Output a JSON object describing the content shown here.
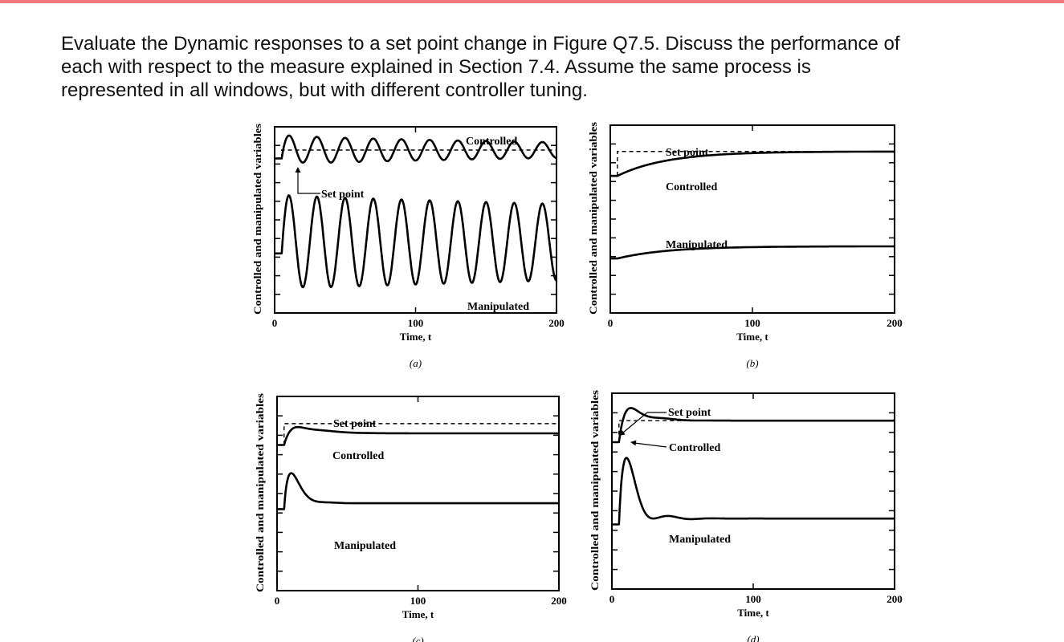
{
  "question": {
    "lines": [
      "Evaluate the Dynamic responses to a set point change in Figure Q7.5.  Discuss the performance of",
      "each with respect to the measure explained in Section 7.4.  Assume the same process is",
      "represented in all windows, but with different controller tuning."
    ]
  },
  "chart_data": [
    {
      "type": "line",
      "panel": "a",
      "caption": "(a)",
      "xlabel": "Time, t",
      "ylabel": "Controlled and manipulated variables",
      "xlim": [
        0,
        200
      ],
      "x_ticks": [
        0,
        100,
        200
      ],
      "ylim": [
        0,
        10
      ],
      "labels": {
        "controlled": "Controlled",
        "setpoint": "Set point",
        "manipulated": "Manipulated"
      },
      "setpoint": {
        "initial": 8.3,
        "final": 8.75,
        "step_time": 5
      },
      "series": [
        {
          "name": "Controlled",
          "initial": 8.3,
          "final": 8.75,
          "amplitude": 0.75,
          "period": 20,
          "decay": 0.003,
          "overshoot": 0.08,
          "rise_tau": 2
        },
        {
          "name": "Manipulated",
          "initial": 3.2,
          "final": 3.8,
          "amplitude": 2.5,
          "period": 20,
          "decay": 0.001,
          "overshoot": 0.08,
          "rise_tau": 2
        }
      ]
    },
    {
      "type": "line",
      "panel": "b",
      "caption": "(b)",
      "xlabel": "Time, t",
      "ylabel": "Controlled and manipulated variables",
      "xlim": [
        0,
        200
      ],
      "x_ticks": [
        0,
        100,
        200
      ],
      "ylim": [
        0,
        10
      ],
      "labels": {
        "setpoint": "Set point",
        "controlled": "Controlled",
        "manipulated": "Manipulated"
      },
      "setpoint": {
        "initial": 7.3,
        "final": 8.6,
        "step_time": 5
      },
      "series": [
        {
          "name": "Controlled",
          "initial": 7.3,
          "final": 8.6,
          "amplitude": 0,
          "period": 40,
          "decay": 0.03,
          "overshoot": 0,
          "rise_tau": 35
        },
        {
          "name": "Manipulated",
          "initial": 2.9,
          "final": 3.55,
          "amplitude": 0,
          "period": 40,
          "decay": 0.03,
          "overshoot": 0,
          "rise_tau": 35
        }
      ]
    },
    {
      "type": "line",
      "panel": "c",
      "caption": "(c)",
      "xlabel": "Time, t",
      "ylabel": "Controlled and manipulated variables",
      "xlim": [
        0,
        200
      ],
      "x_ticks": [
        0,
        100,
        200
      ],
      "ylim": [
        0,
        10
      ],
      "labels": {
        "setpoint": "Set point",
        "controlled": "Controlled",
        "manipulated": "Manipulated"
      },
      "setpoint": {
        "initial": 7.5,
        "final": 8.6,
        "step_time": 5
      },
      "series": [
        {
          "name": "Controlled",
          "initial": 7.5,
          "final": 8.1,
          "amplitude": 0.3,
          "period": 30,
          "decay": 0.11,
          "overshoot": 0.35,
          "rise_tau": 6
        },
        {
          "name": "Manipulated",
          "initial": 4.2,
          "final": 4.5,
          "amplitude": 0.7,
          "period": 30,
          "decay": 0.11,
          "overshoot": 1.2,
          "rise_tau": 1
        }
      ]
    },
    {
      "type": "line",
      "panel": "d",
      "caption": "(d)",
      "xlabel": "Time, t",
      "ylabel": "Controlled and manipulated variables",
      "xlim": [
        0,
        200
      ],
      "x_ticks": [
        0,
        100,
        200
      ],
      "ylim": [
        0,
        10
      ],
      "labels": {
        "setpoint": "Set point",
        "controlled": "Controlled",
        "manipulated": "Manipulated"
      },
      "setpoint": {
        "initial": 7.5,
        "final": 8.6,
        "step_time": 5
      },
      "series": [
        {
          "name": "Controlled",
          "initial": 7.5,
          "final": 8.6,
          "amplitude": 0.5,
          "period": 30,
          "decay": 0.09,
          "overshoot": 0.55,
          "rise_tau": 4
        },
        {
          "name": "Manipulated",
          "initial": 3.3,
          "final": 3.6,
          "amplitude": 1.5,
          "period": 30,
          "decay": 0.075,
          "overshoot": 2.2,
          "rise_tau": 1
        }
      ]
    }
  ]
}
